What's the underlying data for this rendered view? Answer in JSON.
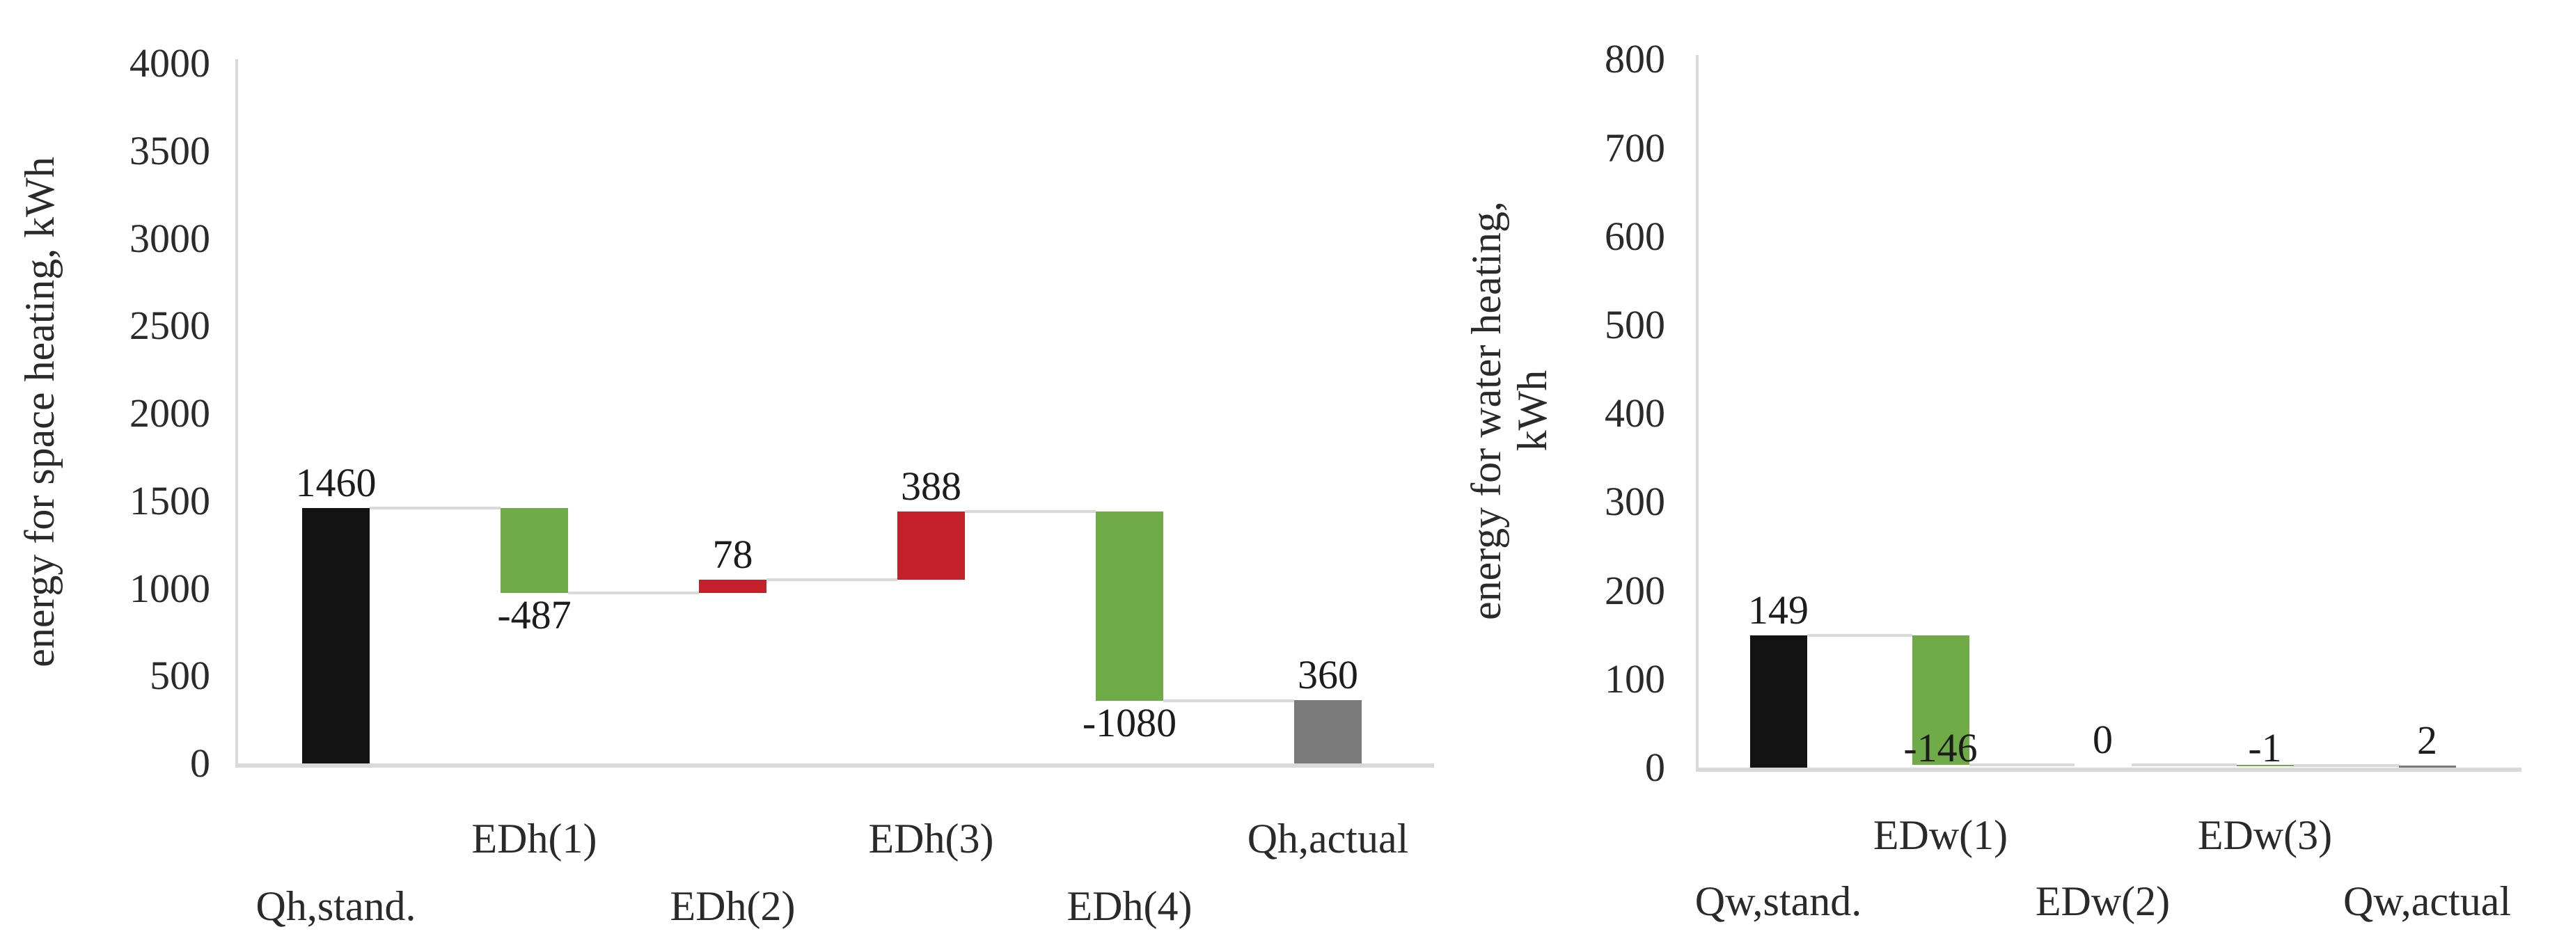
{
  "figure": {
    "description": "two waterfall bar charts of energy demand deviations",
    "background": "#ffffff"
  },
  "colors": {
    "start_bar": "#131313",
    "increase_bar": "#c32029",
    "decrease_bar": "#6fab47",
    "end_bar": "#7a7a7a",
    "axis_line": "#d9d9d9",
    "connector_line": "#d9d9d9",
    "text": "#212121"
  },
  "chart_data": [
    {
      "type": "bar",
      "subtype": "waterfall",
      "title": "",
      "xlabel": "",
      "ylabel": "energy for space heating, kWh",
      "ylabel_lines": [
        "energy for space heating, kWh"
      ],
      "categories": [
        "Qh,stand.",
        "EDh(1)",
        "EDh(2)",
        "EDh(3)",
        "EDh(4)",
        "Qh,actual"
      ],
      "values": [
        1460,
        -487,
        78,
        388,
        -1080,
        360
      ],
      "data_labels": [
        "1460",
        "-487",
        "78",
        "388",
        "-1080",
        "360"
      ],
      "bar_roles": [
        "start",
        "decrease",
        "increase",
        "increase",
        "decrease",
        "end"
      ],
      "running_levels": [
        1460,
        973,
        1051,
        1439,
        359,
        360
      ],
      "ylim": [
        0,
        4000
      ],
      "ytick_step": 500,
      "ytick_labels": [
        "4000",
        "3500",
        "3000",
        "2500",
        "2000",
        "1500",
        "1000",
        "500",
        "0"
      ],
      "grid": "off",
      "legend": "none"
    },
    {
      "type": "bar",
      "subtype": "waterfall",
      "title": "",
      "xlabel": "",
      "ylabel": "energy for water heating, kWh",
      "ylabel_lines": [
        "energy for water heating,",
        "kWh"
      ],
      "categories": [
        "Qw,stand.",
        "EDw(1)",
        "EDw(2)",
        "EDw(3)",
        "Qw,actual"
      ],
      "values": [
        149,
        -146,
        0,
        -1,
        2
      ],
      "data_labels": [
        "149",
        "-146",
        "0",
        "-1",
        "2"
      ],
      "bar_roles": [
        "start",
        "decrease",
        "increase",
        "decrease",
        "end"
      ],
      "running_levels": [
        149,
        3,
        3,
        2,
        2
      ],
      "ylim": [
        0,
        800
      ],
      "ytick_step": 100,
      "ytick_labels": [
        "800",
        "700",
        "600",
        "500",
        "400",
        "300",
        "200",
        "100",
        "0"
      ],
      "grid": "off",
      "legend": "none"
    }
  ]
}
